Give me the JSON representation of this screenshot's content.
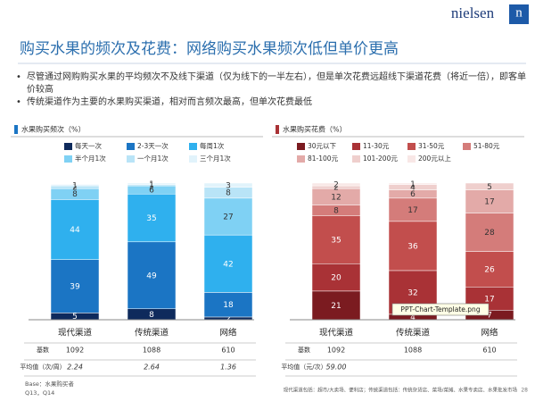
{
  "header": {
    "logo": "nielsen",
    "logo_mark": "n",
    "title": "购买水果的频次及花费：网络购买水果频次低但单价更高"
  },
  "bullets": [
    "尽管通过网购购买水果的平均频次不及线下渠道（仅为线下的一半左右），但是单次花费远超线下渠道花费（将近一倍），即客单价较高",
    "传统渠道作为主要的水果购买渠道，相对而言频次最高，但单次花费最低"
  ],
  "chart_data": [
    {
      "type": "stacked-bar",
      "title": "水果购买频次（%）",
      "categories": [
        "现代渠道",
        "传统渠道",
        "网络"
      ],
      "ylim": [
        0,
        100
      ],
      "series": [
        {
          "name": "每天一次",
          "color": "#0e2a5c",
          "values": [
            5,
            8,
            2
          ]
        },
        {
          "name": "2-3天一次",
          "color": "#1b75c4",
          "values": [
            39,
            49,
            18
          ]
        },
        {
          "name": "每周1次",
          "color": "#2fb0ee",
          "values": [
            44,
            35,
            42
          ]
        },
        {
          "name": "半个月1次",
          "color": "#7fd1f4",
          "values": [
            8,
            6,
            27
          ]
        },
        {
          "name": "一个月1次",
          "color": "#b9e4f7",
          "values": [
            2,
            1,
            8
          ]
        },
        {
          "name": "三个月1次",
          "color": "#e1f3fb",
          "values": [
            1,
            1,
            3
          ]
        }
      ],
      "table": {
        "rows": [
          [
            "基数",
            "1092",
            "1088",
            "610"
          ],
          [
            "平均值（次/周）",
            "2.24",
            "2.64",
            "1.36"
          ]
        ]
      }
    },
    {
      "type": "stacked-bar",
      "title": "水果购买花费（%）",
      "categories": [
        "现代渠道",
        "传统渠道",
        "网络"
      ],
      "ylim": [
        0,
        100
      ],
      "series": [
        {
          "name": "30元以下",
          "color": "#7b1b20",
          "values": [
            21,
            4,
            7
          ]
        },
        {
          "name": "11-30元",
          "color": "#a93236",
          "values": [
            20,
            32,
            17
          ]
        },
        {
          "name": "31-50元",
          "color": "#c24e4d",
          "values": [
            35,
            36,
            26
          ]
        },
        {
          "name": "51-80元",
          "color": "#d47c7a",
          "values": [
            8,
            17,
            28
          ]
        },
        {
          "name": "81-100元",
          "color": "#e3aaa8",
          "values": [
            12,
            6,
            17
          ]
        },
        {
          "name": "101-200元",
          "color": "#efcfcd",
          "values": [
            2,
            4,
            5
          ]
        },
        {
          "name": "200元以上",
          "color": "#f8e7e6",
          "values": [
            2,
            1,
            0
          ]
        }
      ],
      "table": {
        "rows": [
          [
            "基数",
            "1092",
            "1088",
            "610"
          ],
          [
            "平均值（元/次）",
            "59.00",
            null,
            null
          ]
        ]
      }
    }
  ],
  "tooltip": "PPT-Chart-Template.png",
  "footer": {
    "base": "Base：水果购买者",
    "questions": "Q13，Q14",
    "note": "现代渠道包括：超市/大卖场、便利店；传统渠道包括：传统杂货店、菜场/菜摊、水果专卖店、水果批发市场",
    "page": "28"
  }
}
